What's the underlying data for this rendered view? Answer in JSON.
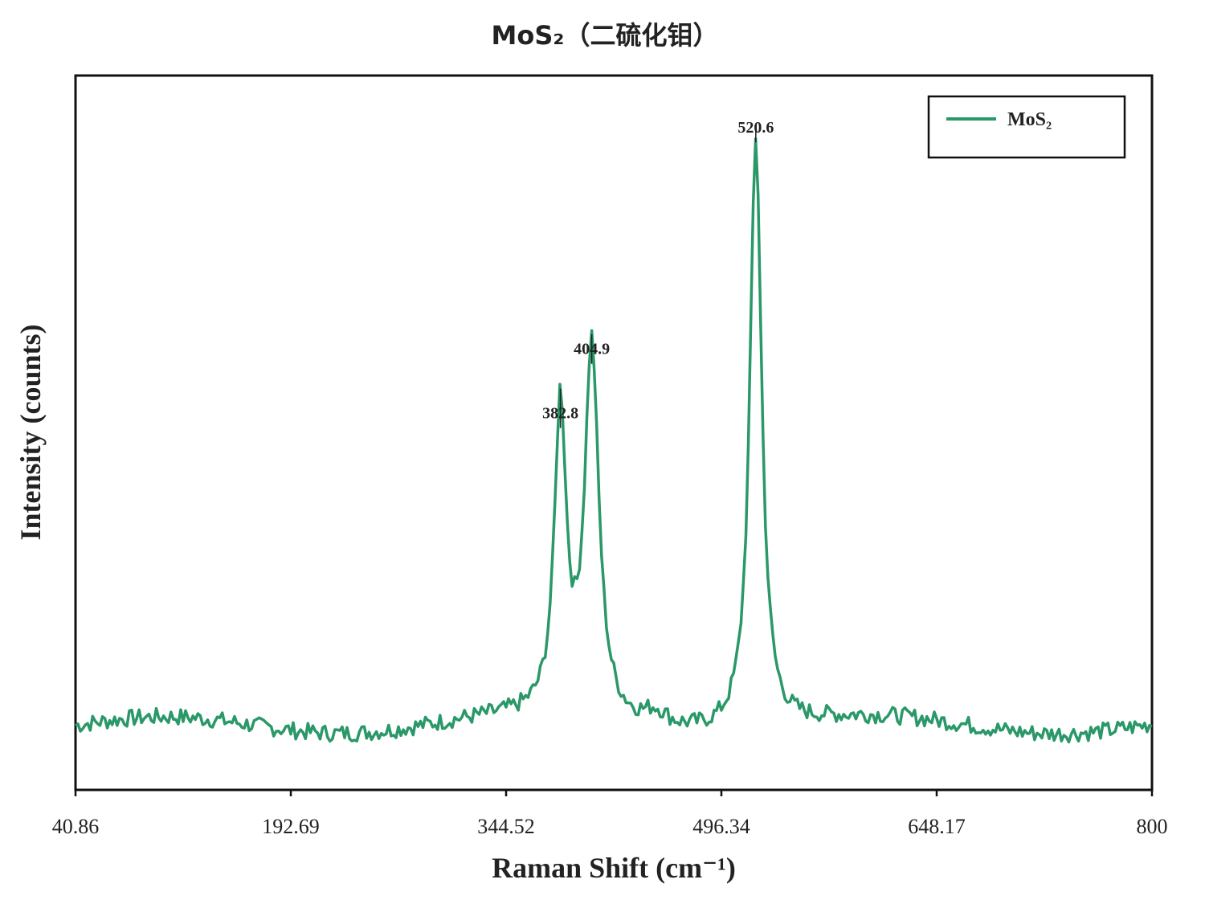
{
  "chart_data": {
    "type": "line",
    "title": "MoS₂（二硫化钼）",
    "xlabel": "Raman Shift (cm⁻¹)",
    "ylabel": "Intensity (counts)",
    "xlim": [
      40.86,
      800
    ],
    "ylim": [
      0,
      1.0
    ],
    "x_ticks": [
      "40.86",
      "192.69",
      "344.52",
      "496.34",
      "648.17",
      "800"
    ],
    "y_ticks": [],
    "grid": false,
    "legend": {
      "position": "top-right",
      "entries": [
        "MoS₂"
      ]
    },
    "series": [
      {
        "name": "MoS₂",
        "color": "#2a9868",
        "baseline": 0.09,
        "noise": 0.012,
        "peaks": [
          {
            "x": 382.8,
            "height": 0.43,
            "width": 5
          },
          {
            "x": 404.9,
            "height": 0.52,
            "width": 6
          },
          {
            "x": 450,
            "height": 0.02,
            "width": 10
          },
          {
            "x": 520.6,
            "height": 0.83,
            "width": 5
          }
        ]
      }
    ],
    "annotations": [
      {
        "x": 382.8,
        "y": 0.52,
        "text": "382.8"
      },
      {
        "x": 404.9,
        "y": 0.61,
        "text": "404.9"
      },
      {
        "x": 520.6,
        "y": 0.92,
        "text": "520.6"
      }
    ],
    "colors": {
      "axis": "#111111",
      "text": "#222222"
    }
  }
}
